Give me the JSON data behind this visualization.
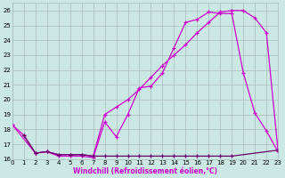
{
  "xlabel": "Windchill (Refroidissement éolien,°C)",
  "bg_color": "#cce8e5",
  "grid_color": "#aabbbb",
  "line_color": "#cc00cc",
  "dark_color": "#660066",
  "xlim": [
    0,
    23
  ],
  "ylim": [
    16,
    26.5
  ],
  "yticks": [
    16,
    17,
    18,
    19,
    20,
    21,
    22,
    23,
    24,
    25,
    26
  ],
  "xticks": [
    0,
    1,
    2,
    3,
    4,
    5,
    6,
    7,
    8,
    9,
    10,
    11,
    12,
    13,
    14,
    15,
    16,
    17,
    18,
    19,
    20,
    21,
    22,
    23
  ],
  "curve1_x": [
    0,
    1,
    2,
    3,
    4,
    5,
    6,
    7,
    8,
    9,
    10,
    11,
    12,
    13,
    14,
    15,
    16,
    17,
    18,
    19,
    20,
    21,
    22,
    23
  ],
  "curve1_y": [
    18.3,
    17.6,
    16.4,
    16.5,
    16.2,
    16.2,
    16.2,
    16.1,
    18.5,
    17.5,
    19.0,
    20.8,
    20.9,
    21.8,
    23.5,
    25.2,
    25.4,
    25.9,
    25.8,
    25.8,
    21.8,
    19.1,
    17.9,
    16.5
  ],
  "curve2_x": [
    0,
    2,
    3,
    4,
    5,
    6,
    7,
    8,
    9,
    10,
    11,
    12,
    13,
    14,
    15,
    16,
    17,
    18,
    19,
    20,
    21,
    22,
    23
  ],
  "curve2_y": [
    18.3,
    16.4,
    16.5,
    16.3,
    16.3,
    16.3,
    16.2,
    19.0,
    19.5,
    20.0,
    20.7,
    21.5,
    22.3,
    23.0,
    23.7,
    24.5,
    25.2,
    25.9,
    26.0,
    26.0,
    25.5,
    24.5,
    16.6
  ],
  "flat_x": [
    1,
    2,
    3,
    4,
    5,
    6,
    7,
    8,
    9,
    10,
    11,
    12,
    13,
    14,
    15,
    16,
    17,
    18,
    19,
    23
  ],
  "flat_y": [
    17.6,
    16.4,
    16.5,
    16.3,
    16.3,
    16.3,
    16.2,
    16.2,
    16.2,
    16.2,
    16.2,
    16.2,
    16.2,
    16.2,
    16.2,
    16.2,
    16.2,
    16.2,
    16.2,
    16.6
  ]
}
